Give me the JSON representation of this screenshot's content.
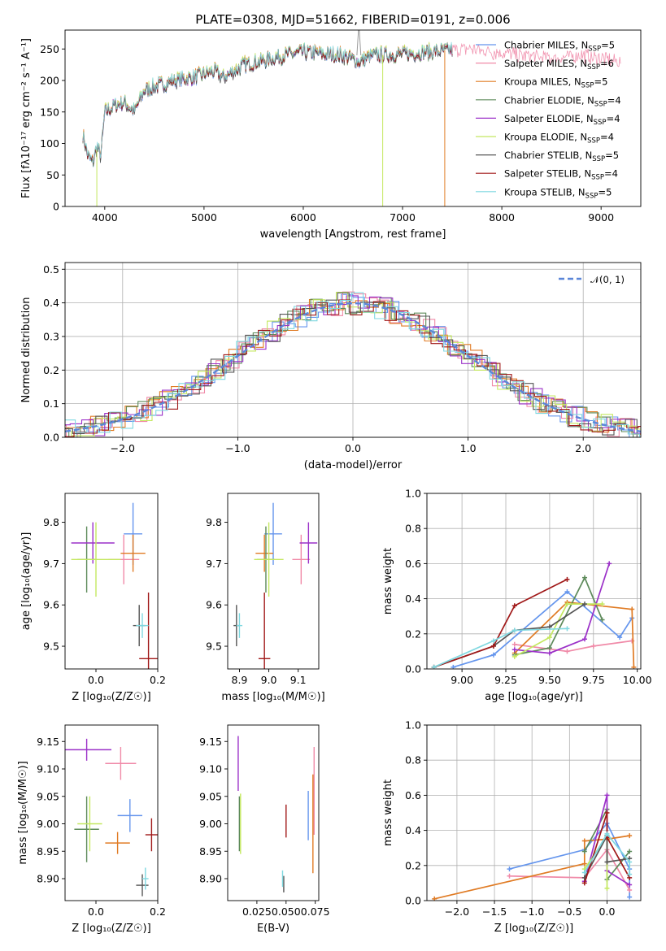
{
  "figure_title": "PLATE=0308, MJD=51662, FIBERID=0191, z=0.006",
  "models": [
    {
      "name": "Chabrier MILES",
      "n": "5",
      "color": "#6495ed"
    },
    {
      "name": "Salpeter MILES",
      "n": "6",
      "color": "#f08aa8"
    },
    {
      "name": "Kroupa MILES",
      "n": "5",
      "color": "#e07b24"
    },
    {
      "name": "Chabrier ELODIE",
      "n": "4",
      "color": "#5d8a5a"
    },
    {
      "name": "Salpeter ELODIE",
      "n": "4",
      "color": "#9b30c8"
    },
    {
      "name": "Kroupa ELODIE",
      "n": "4",
      "color": "#c4e860"
    },
    {
      "name": "Chabrier STELIB",
      "n": "5",
      "color": "#555555"
    },
    {
      "name": "Salpeter STELIB",
      "n": "4",
      "color": "#a01818"
    },
    {
      "name": "Kroupa STELIB",
      "n": "5",
      "color": "#7fd8e0"
    }
  ],
  "nssp_prefix": "N",
  "nssp_sub": "SSP",
  "chart_data": [
    {
      "id": "spectrum",
      "type": "line",
      "xlabel": "wavelength [Angstrom, rest frame]",
      "ylabel": "Flux [fλ10⁻¹⁷ erg cm⁻² s⁻¹ A⁻¹]",
      "xlim": [
        3600,
        9400
      ],
      "ylim": [
        0,
        280
      ],
      "xticks": [
        4000,
        5000,
        6000,
        7000,
        8000,
        9000
      ],
      "yticks": [
        0,
        50,
        100,
        150,
        200,
        250
      ],
      "data_end": {
        "Salpeter MILES": 9200,
        "default": 7500
      },
      "anchors": [
        [
          3780,
          115
        ],
        [
          3830,
          80
        ],
        [
          3880,
          70
        ],
        [
          3920,
          95
        ],
        [
          3960,
          80
        ],
        [
          4000,
          150
        ],
        [
          4100,
          160
        ],
        [
          4200,
          165
        ],
        [
          4300,
          150
        ],
        [
          4400,
          185
        ],
        [
          4500,
          190
        ],
        [
          4700,
          200
        ],
        [
          4900,
          205
        ],
        [
          5100,
          215
        ],
        [
          5200,
          205
        ],
        [
          5400,
          225
        ],
        [
          5600,
          232
        ],
        [
          5800,
          240
        ],
        [
          6000,
          245
        ],
        [
          6200,
          242
        ],
        [
          6400,
          240
        ],
        [
          6560,
          230
        ],
        [
          6700,
          240
        ],
        [
          7000,
          242
        ],
        [
          7300,
          246
        ],
        [
          7500,
          248
        ],
        [
          7700,
          250
        ],
        [
          7900,
          245
        ],
        [
          8200,
          240
        ],
        [
          8500,
          235
        ],
        [
          8800,
          240
        ],
        [
          9000,
          235
        ],
        [
          9200,
          230
        ]
      ]
    },
    {
      "id": "residuals",
      "type": "histogram",
      "xlabel": "(data-model)/error",
      "ylabel": "Normed distribution",
      "xlim": [
        -2.5,
        2.5
      ],
      "ylim": [
        0,
        0.52
      ],
      "xticks": [
        -2,
        -1,
        0,
        1,
        2
      ],
      "yticks": [
        0.0,
        0.1,
        0.2,
        0.3,
        0.4,
        0.5
      ],
      "curve_label": "𝒩(0, 1)",
      "bin_width": 0.1,
      "grid": true,
      "legend": "upper right"
    },
    {
      "id": "age-vs-Z",
      "type": "scatter",
      "xlabel": "Z [log₁₀(Z/Z☉)]",
      "ylabel": "age  [log₁₀(age/yr)]",
      "xlim": [
        -0.1,
        0.2
      ],
      "ylim": [
        9.445,
        9.87
      ],
      "xticks": [
        0.0,
        0.2
      ],
      "yticks": [
        9.5,
        9.6,
        9.7,
        9.8
      ],
      "points": [
        {
          "m": 0,
          "x": 0.12,
          "y": 9.772,
          "xe": 0.03,
          "ye": 0.075
        },
        {
          "m": 1,
          "x": 0.09,
          "y": 9.71,
          "xe": 0.05,
          "ye": 0.06
        },
        {
          "m": 2,
          "x": 0.12,
          "y": 9.725,
          "xe": 0.04,
          "ye": 0.045
        },
        {
          "m": 3,
          "x": -0.03,
          "y": 9.71,
          "xe": 0.03,
          "ye": 0.08
        },
        {
          "m": 4,
          "x": -0.01,
          "y": 9.75,
          "xe": 0.07,
          "ye": 0.05
        },
        {
          "m": 5,
          "x": 0.0,
          "y": 9.71,
          "xe": 0.08,
          "ye": 0.09
        },
        {
          "m": 6,
          "x": 0.14,
          "y": 9.55,
          "xe": 0.02,
          "ye": 0.05
        },
        {
          "m": 7,
          "x": 0.17,
          "y": 9.47,
          "xe": 0.03,
          "ye": 0.16
        },
        {
          "m": 8,
          "x": 0.15,
          "y": 9.55,
          "xe": 0.02,
          "ye": 0.03
        }
      ]
    },
    {
      "id": "age-vs-mass",
      "type": "scatter",
      "xlabel": "mass [log₁₀(M/M☉)]",
      "ylabel": "",
      "xlim": [
        8.86,
        9.17
      ],
      "ylim": [
        9.445,
        9.87
      ],
      "xticks": [
        8.9,
        9.0,
        9.1
      ],
      "yticks": [
        9.5,
        9.6,
        9.7,
        9.8
      ],
      "points": [
        {
          "m": 0,
          "x": 9.015,
          "y": 9.772,
          "xe": 0.03,
          "ye": 0.075
        },
        {
          "m": 1,
          "x": 9.11,
          "y": 9.71,
          "xe": 0.03,
          "ye": 0.06
        },
        {
          "m": 2,
          "x": 8.985,
          "y": 9.725,
          "xe": 0.03,
          "ye": 0.045
        },
        {
          "m": 3,
          "x": 8.99,
          "y": 9.71,
          "xe": 0.03,
          "ye": 0.08
        },
        {
          "m": 4,
          "x": 9.135,
          "y": 9.75,
          "xe": 0.03,
          "ye": 0.05
        },
        {
          "m": 5,
          "x": 9.0,
          "y": 9.71,
          "xe": 0.05,
          "ye": 0.09
        },
        {
          "m": 6,
          "x": 8.89,
          "y": 9.55,
          "xe": 0.01,
          "ye": 0.05
        },
        {
          "m": 7,
          "x": 8.985,
          "y": 9.47,
          "xe": 0.02,
          "ye": 0.16
        },
        {
          "m": 8,
          "x": 8.9,
          "y": 9.55,
          "xe": 0.01,
          "ye": 0.03
        }
      ]
    },
    {
      "id": "mass-weight-vs-age",
      "type": "line",
      "xlabel": "age  [log₁₀(age/yr)]",
      "ylabel": "mass weight",
      "xlim": [
        8.8,
        10.02
      ],
      "ylim": [
        0,
        1.0
      ],
      "xticks": [
        9.0,
        9.25,
        9.5,
        9.75,
        10.0
      ],
      "yticks": [
        0.0,
        0.2,
        0.4,
        0.6,
        0.8,
        1.0
      ],
      "grid": true,
      "series": [
        {
          "m": 0,
          "x": [
            8.95,
            9.18,
            9.6,
            9.9,
            9.97
          ],
          "y": [
            0.01,
            0.08,
            0.44,
            0.18,
            0.29
          ]
        },
        {
          "m": 1,
          "x": [
            9.3,
            9.6,
            9.75,
            9.97
          ],
          "y": [
            0.14,
            0.1,
            0.13,
            0.16
          ]
        },
        {
          "m": 2,
          "x": [
            9.3,
            9.6,
            9.97,
            9.98
          ],
          "y": [
            0.09,
            0.38,
            0.34,
            0.01
          ]
        },
        {
          "m": 3,
          "x": [
            9.3,
            9.5,
            9.7,
            9.8
          ],
          "y": [
            0.08,
            0.12,
            0.52,
            0.28
          ]
        },
        {
          "m": 4,
          "x": [
            9.3,
            9.5,
            9.7,
            9.84
          ],
          "y": [
            0.11,
            0.09,
            0.17,
            0.6
          ]
        },
        {
          "m": 5,
          "x": [
            9.3,
            9.5,
            9.6,
            9.8
          ],
          "y": [
            0.07,
            0.18,
            0.37,
            0.37
          ]
        },
        {
          "m": 6,
          "x": [
            8.84,
            9.18,
            9.3,
            9.5,
            9.7
          ],
          "y": [
            0.01,
            0.13,
            0.22,
            0.24,
            0.37
          ]
        },
        {
          "m": 7,
          "x": [
            8.84,
            9.18,
            9.3,
            9.6
          ],
          "y": [
            0.01,
            0.13,
            0.36,
            0.51
          ]
        },
        {
          "m": 8,
          "x": [
            8.84,
            9.18,
            9.3,
            9.6
          ],
          "y": [
            0.01,
            0.16,
            0.22,
            0.23
          ]
        }
      ]
    },
    {
      "id": "mass-vs-Z",
      "type": "scatter",
      "xlabel": "Z [log₁₀(Z/Z☉)]",
      "ylabel": "mass [log₁₀(M/M☉)]",
      "xlim": [
        -0.1,
        0.2
      ],
      "ylim": [
        8.86,
        9.18
      ],
      "xticks": [
        0.0,
        0.2
      ],
      "yticks": [
        8.9,
        8.95,
        9.0,
        9.05,
        9.1,
        9.15
      ],
      "points": [
        {
          "m": 0,
          "x": 0.11,
          "y": 9.015,
          "xe": 0.04,
          "ye": 0.03
        },
        {
          "m": 1,
          "x": 0.08,
          "y": 9.11,
          "xe": 0.05,
          "ye": 0.03
        },
        {
          "m": 2,
          "x": 0.07,
          "y": 8.965,
          "xe": 0.04,
          "ye": 0.02
        },
        {
          "m": 3,
          "x": -0.03,
          "y": 8.99,
          "xe": 0.04,
          "ye": 0.06
        },
        {
          "m": 4,
          "x": -0.03,
          "y": 9.135,
          "xe": 0.08,
          "ye": 0.02
        },
        {
          "m": 5,
          "x": -0.02,
          "y": 9.0,
          "xe": 0.04,
          "ye": 0.05
        },
        {
          "m": 6,
          "x": 0.15,
          "y": 8.888,
          "xe": 0.02,
          "ye": 0.02
        },
        {
          "m": 7,
          "x": 0.18,
          "y": 8.98,
          "xe": 0.02,
          "ye": 0.03
        },
        {
          "m": 8,
          "x": 0.16,
          "y": 8.9,
          "xe": 0.01,
          "ye": 0.02
        }
      ]
    },
    {
      "id": "mass-vs-ebv",
      "type": "scatter",
      "xlabel": "E(B-V)",
      "ylabel": "",
      "xlim": [
        0.0,
        0.078
      ],
      "ylim": [
        8.86,
        9.18
      ],
      "xticks": [
        0.025,
        0.05,
        0.075
      ],
      "xticklabels": [
        "0.025",
        "0.050",
        "0.075"
      ],
      "yticks": [
        8.9,
        8.95,
        9.0,
        9.05,
        9.1,
        9.15
      ],
      "points": [
        {
          "m": 0,
          "x": 0.069,
          "y": 9.015,
          "xe": 0.0,
          "ye": 0.045
        },
        {
          "m": 1,
          "x": 0.074,
          "y": 9.06,
          "xe": 0.0,
          "ye": 0.08
        },
        {
          "m": 2,
          "x": 0.073,
          "y": 9.0,
          "xe": 0.0,
          "ye": 0.09
        },
        {
          "m": 3,
          "x": 0.01,
          "y": 9.0,
          "xe": 0.0,
          "ye": 0.05
        },
        {
          "m": 4,
          "x": 0.009,
          "y": 9.11,
          "xe": 0.0,
          "ye": 0.05
        },
        {
          "m": 5,
          "x": 0.011,
          "y": 9.0,
          "xe": 0.0,
          "ye": 0.055
        },
        {
          "m": 6,
          "x": 0.048,
          "y": 8.89,
          "xe": 0.0,
          "ye": 0.015
        },
        {
          "m": 7,
          "x": 0.05,
          "y": 9.005,
          "xe": 0.0,
          "ye": 0.03
        },
        {
          "m": 8,
          "x": 0.047,
          "y": 8.9,
          "xe": 0.0,
          "ye": 0.015
        }
      ]
    },
    {
      "id": "mass-weight-vs-Z",
      "type": "line",
      "xlabel": "Z [log₁₀(Z/Z☉)]",
      "ylabel": "mass weight",
      "xlim": [
        -2.4,
        0.45
      ],
      "ylim": [
        0,
        1.0
      ],
      "xticks": [
        -2.0,
        -1.5,
        -1.0,
        -0.5,
        0.0
      ],
      "yticks": [
        0.0,
        0.2,
        0.4,
        0.6,
        0.8,
        1.0
      ],
      "grid": true,
      "series": [
        {
          "m": 0,
          "x": [
            -1.3,
            -0.3,
            0.0,
            0.3,
            0.3
          ],
          "y": [
            0.18,
            0.29,
            0.44,
            0.18,
            0.02
          ]
        },
        {
          "m": 1,
          "x": [
            -1.3,
            -0.3,
            0.0,
            0.3
          ],
          "y": [
            0.14,
            0.13,
            0.29,
            0.06
          ]
        },
        {
          "m": 2,
          "x": [
            -2.3,
            -0.3,
            -0.3,
            0.0,
            0.3
          ],
          "y": [
            0.01,
            0.21,
            0.34,
            0.35,
            0.37
          ]
        },
        {
          "m": 3,
          "x": [
            -0.3,
            0.0,
            0.0,
            0.3
          ],
          "y": [
            0.28,
            0.52,
            0.12,
            0.28
          ]
        },
        {
          "m": 4,
          "x": [
            -0.3,
            0.0,
            0.0,
            0.3
          ],
          "y": [
            0.11,
            0.6,
            0.17,
            0.09
          ]
        },
        {
          "m": 5,
          "x": [
            -0.3,
            0.0,
            0.0
          ],
          "y": [
            0.18,
            0.37,
            0.07
          ]
        },
        {
          "m": 6,
          "x": [
            -0.3,
            0.0,
            0.0,
            0.3
          ],
          "y": [
            0.13,
            0.37,
            0.22,
            0.24
          ]
        },
        {
          "m": 7,
          "x": [
            -0.3,
            0.0,
            0.0,
            0.3
          ],
          "y": [
            0.1,
            0.5,
            0.36,
            0.13
          ]
        },
        {
          "m": 8,
          "x": [
            -0.3,
            0.0,
            0.3,
            0.3
          ],
          "y": [
            0.16,
            0.38,
            0.22,
            0.15
          ]
        }
      ]
    }
  ]
}
